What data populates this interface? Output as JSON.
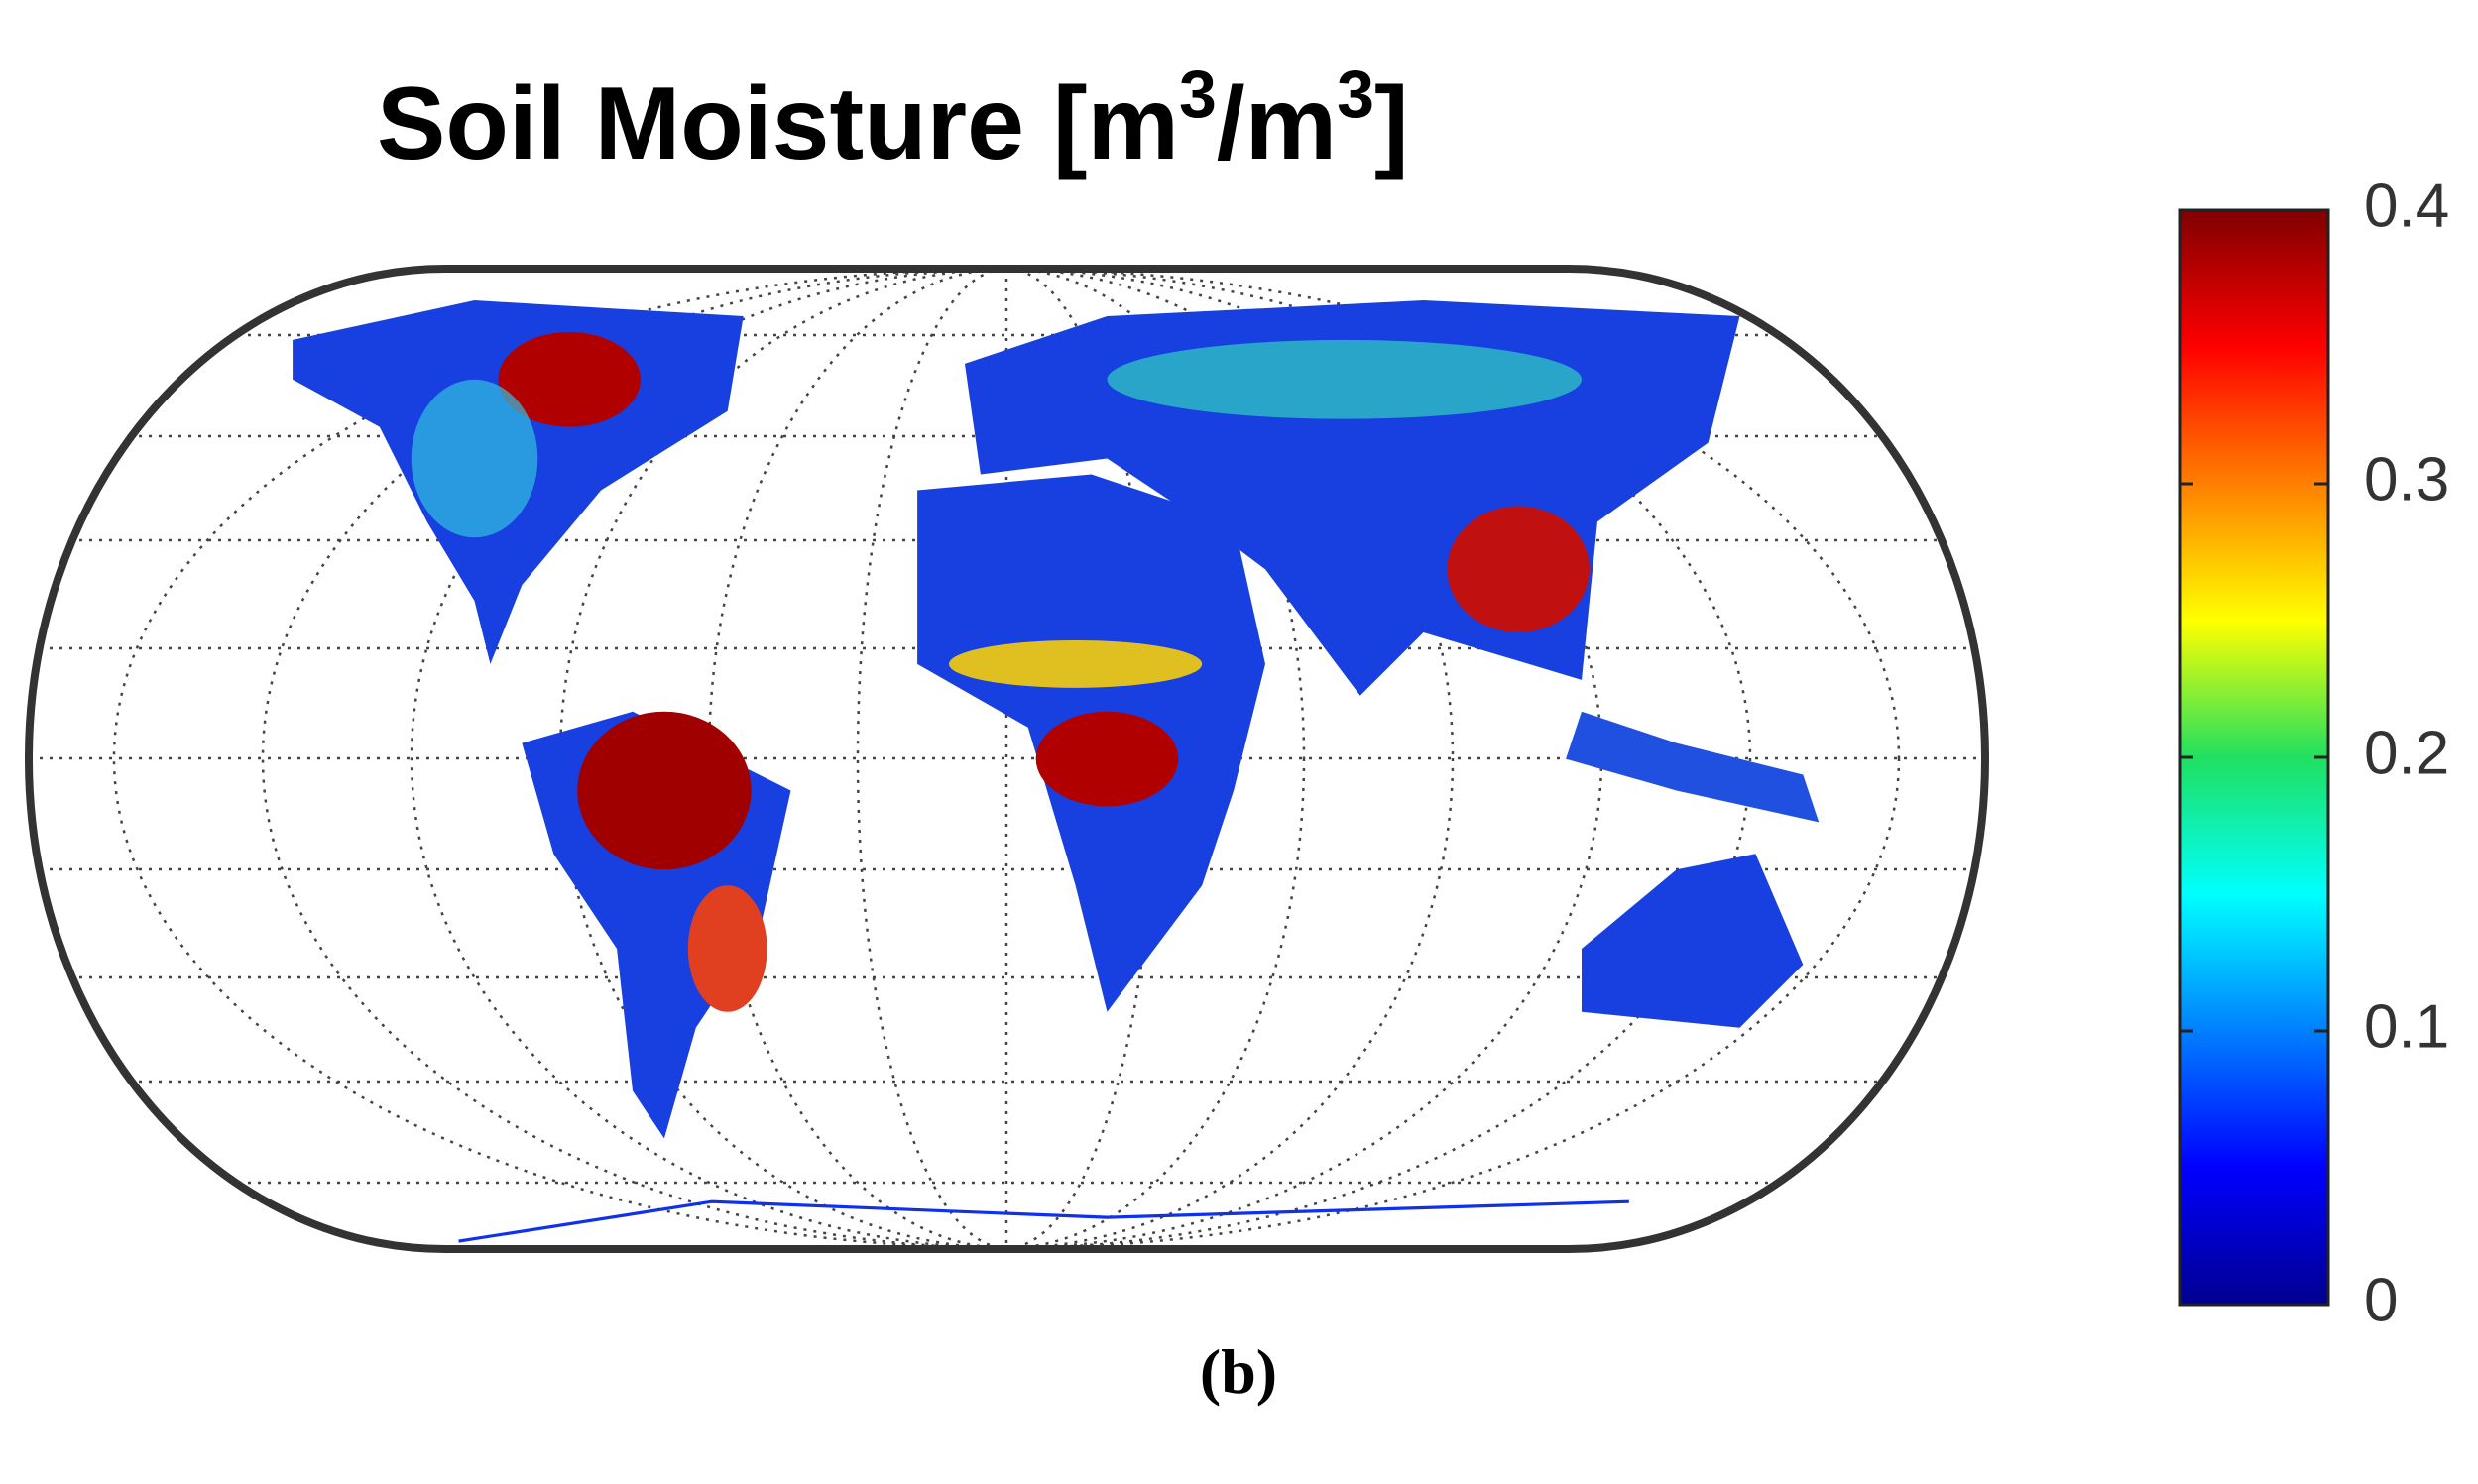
{
  "title": {
    "parts": [
      "Soil Moisture [m",
      "3",
      "/m",
      "3",
      "]"
    ]
  },
  "colorbar": {
    "lim": [
      0,
      0.4
    ],
    "ticks": [
      0,
      0.1,
      0.2,
      0.3,
      0.4
    ]
  },
  "caption": "(b)"
}
